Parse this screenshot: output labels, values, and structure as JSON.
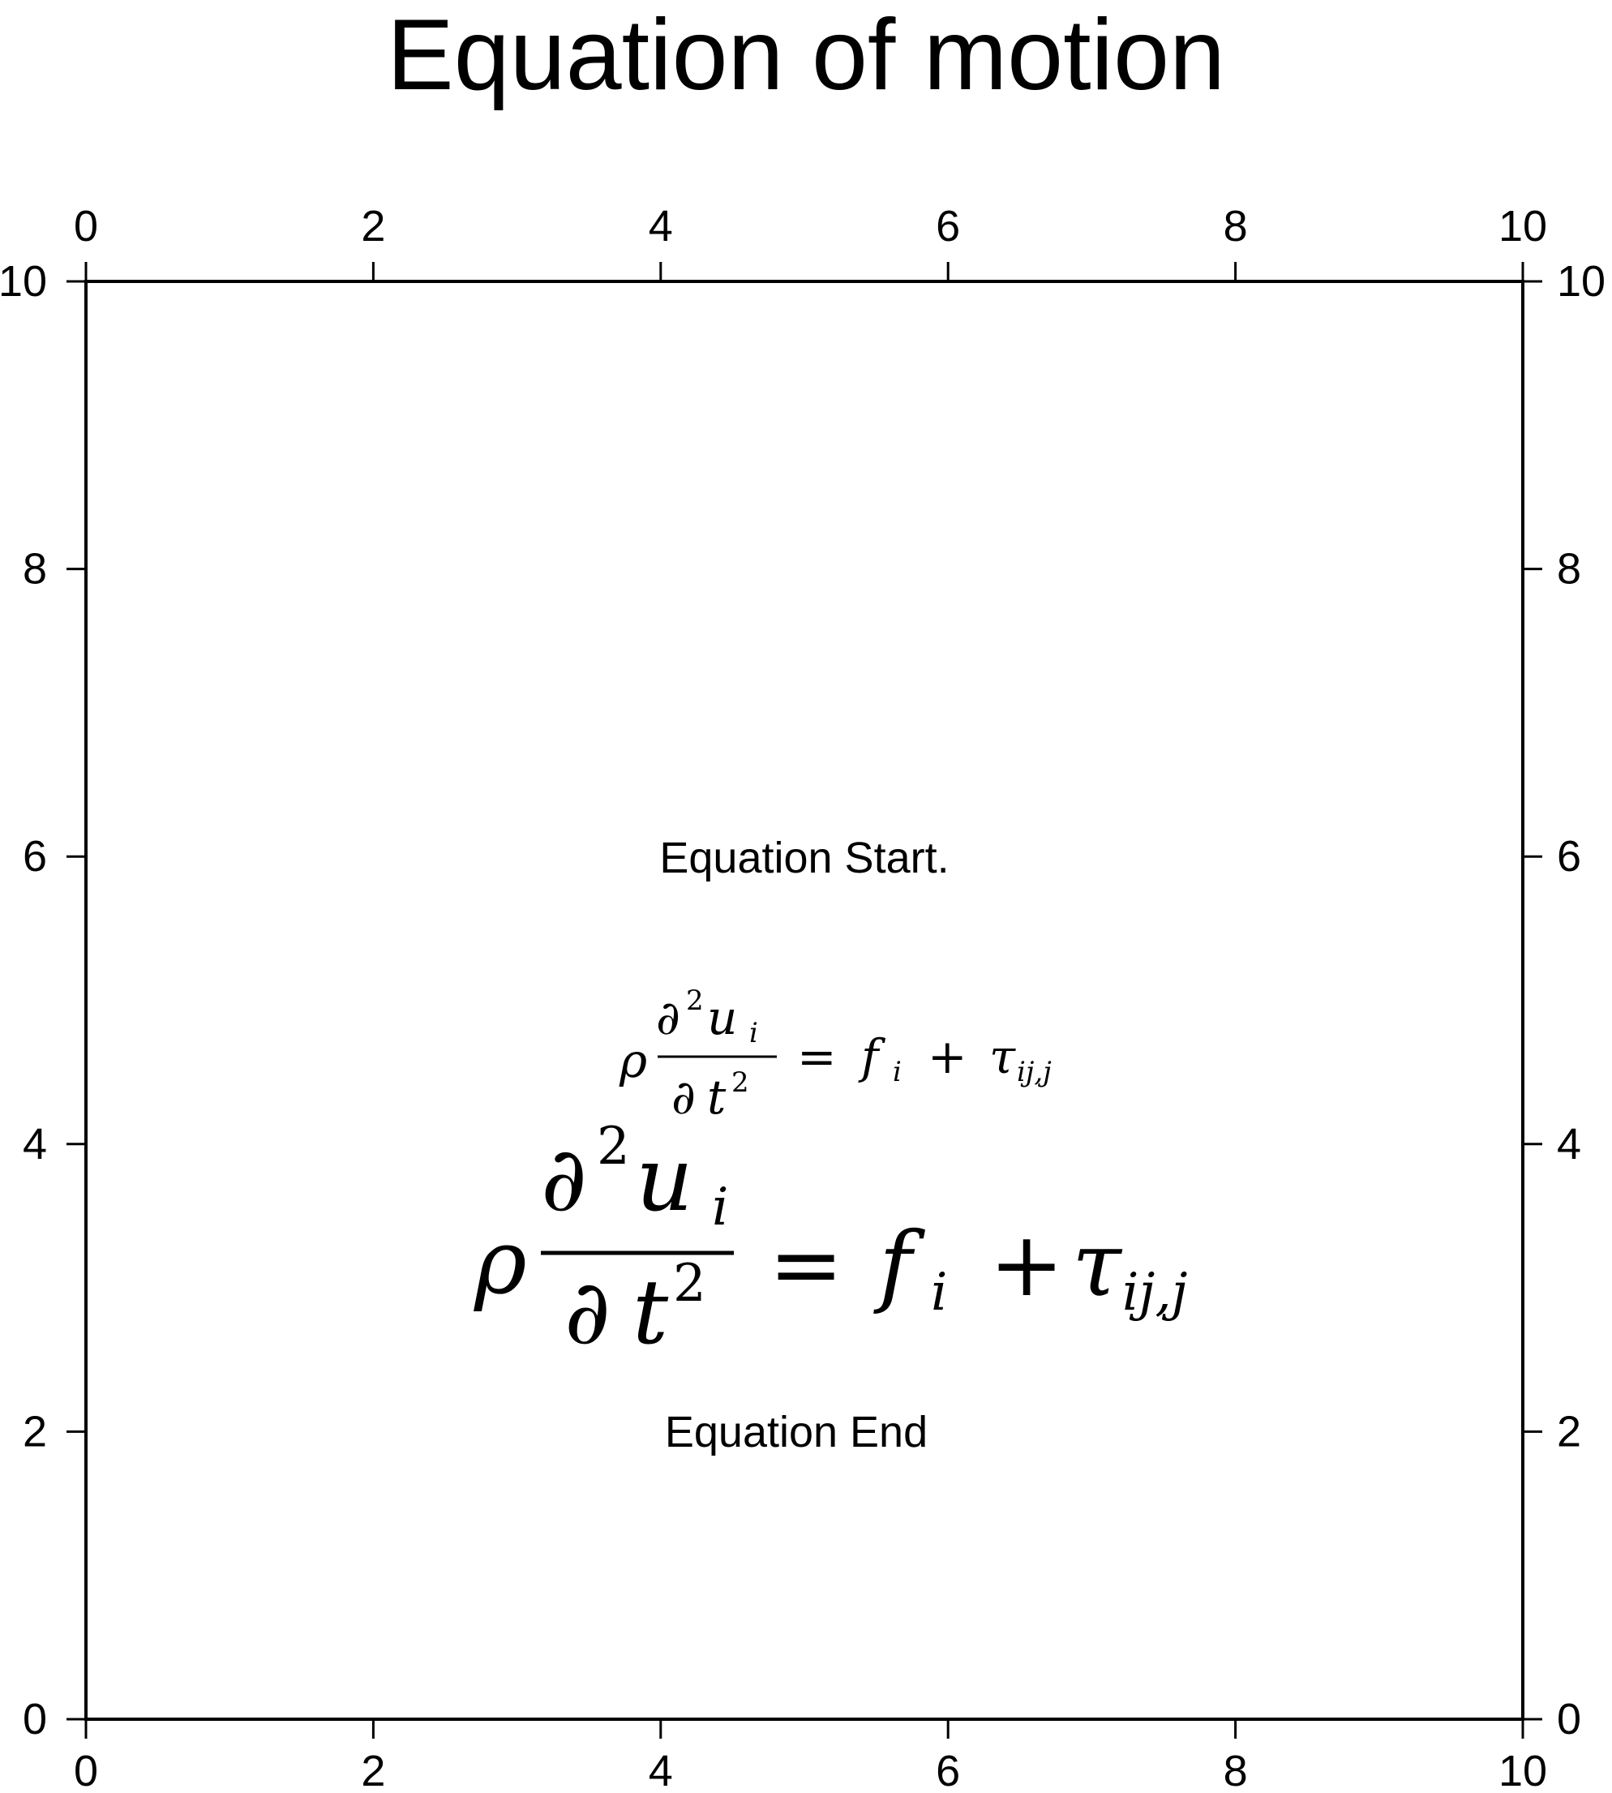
{
  "title": "Equation of motion",
  "axes": {
    "xlim": [
      0,
      10
    ],
    "ylim": [
      0,
      10
    ],
    "x_ticks": [
      0,
      2,
      4,
      6,
      8,
      10
    ],
    "y_ticks": [
      0,
      2,
      4,
      6,
      8,
      10
    ],
    "tick_labels_on": [
      "bottom",
      "top",
      "left",
      "right"
    ],
    "grid": false
  },
  "annotations": {
    "start": {
      "text": "Equation Start.",
      "x": 5,
      "y": 6
    },
    "end": {
      "text": "Equation End",
      "x": 5,
      "y": 2
    }
  },
  "equation": {
    "rho": "ρ",
    "partial": "∂",
    "numerator_var": "u",
    "numerator_sub": "i",
    "denominator_var": "t",
    "exponent": "2",
    "equals": "=",
    "f": "f",
    "f_sub": "i",
    "plus": "+",
    "tau": "τ",
    "tau_sub": "ij,j",
    "small_position": {
      "x": 5,
      "y": 4.75
    },
    "large_position": {
      "x": 5,
      "y": 3.25
    }
  }
}
